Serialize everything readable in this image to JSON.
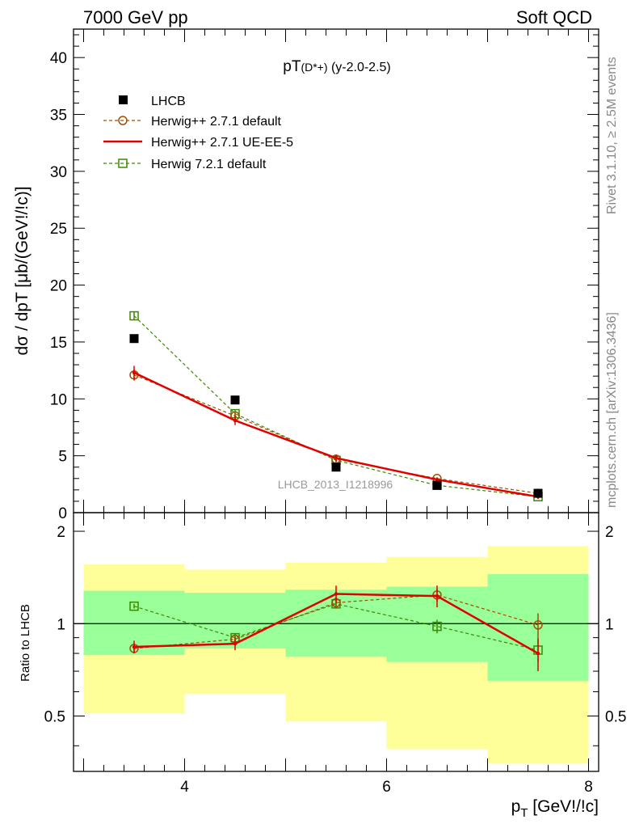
{
  "header": {
    "left_title": "7000 GeV pp",
    "right_title": "Soft QCD"
  },
  "side_labels": {
    "rivet": "Rivet 3.1.10, ≥ 2.5M events",
    "mcplots": "mcplots.cern.ch [arXiv:1306.3436]"
  },
  "colors": {
    "data": "#000000",
    "herwigpp_default": "#a05000",
    "herwigpp_ueee5": "#e00000",
    "herwig7": "#3a8a00",
    "band_inner": "#99ff99",
    "band_outer": "#ffff99"
  },
  "chart_data": [
    {
      "type": "scatter",
      "panel": "main",
      "title": "pT(D*+) (y-2.0-2.5)",
      "title_main": "pT",
      "title_sub": "(D*+)",
      "title_rest": " (y-2.0-2.5)",
      "ylabel": "dσ / dpT [μb/(GeV!/!c)]",
      "xlim": [
        2.9,
        8.1
      ],
      "ylim": [
        0,
        42.5
      ],
      "yticks": [
        0,
        5,
        10,
        15,
        20,
        25,
        30,
        35,
        40
      ],
      "ytick_labels": [
        "0",
        "5",
        "10",
        "15",
        "20",
        "25",
        "30",
        "35",
        "40"
      ],
      "watermark": "LHCB_2013_I1218996",
      "legend_placement": "top-left",
      "x": [
        3.5,
        4.5,
        5.5,
        6.5,
        7.5
      ],
      "series": [
        {
          "name": "LHCB",
          "values": [
            15.3,
            9.9,
            4.0,
            2.4,
            1.7
          ],
          "errors": [
            0.3,
            0.2,
            0.1,
            0.1,
            0.1
          ],
          "marker": "filled-square"
        },
        {
          "name": "Herwig++ 2.7.1 default",
          "values": [
            12.1,
            8.5,
            4.7,
            3.0,
            1.7
          ],
          "errors": [
            0.5,
            0.3,
            0.2,
            0.1,
            0.2
          ],
          "marker": "open-circle",
          "line": "dashed"
        },
        {
          "name": "Herwig++ 2.7.1 UE-EE-5",
          "values": [
            12.3,
            8.1,
            4.8,
            2.9,
            1.4
          ],
          "errors": [
            0.6,
            0.4,
            0.3,
            0.2,
            0.2
          ],
          "marker": "none",
          "line": "solid"
        },
        {
          "name": "Herwig 7.2.1 default",
          "values": [
            17.3,
            8.7,
            4.6,
            2.4,
            1.4
          ],
          "errors": [
            0.4,
            0.3,
            0.2,
            0.1,
            0.1
          ],
          "marker": "open-square",
          "line": "dashed"
        }
      ]
    },
    {
      "type": "scatter",
      "panel": "ratio",
      "ylabel": "Ratio to LHCB",
      "xlabel": "pT [GeV!/!c]",
      "xlabel_main": "p",
      "xlabel_sub": "T",
      "xlabel_rest": " [GeV!/!c]",
      "xlim": [
        2.9,
        8.1
      ],
      "ylim": [
        0.33,
        2.3
      ],
      "log_y": true,
      "xticks": [
        4,
        6,
        8
      ],
      "xtick_labels": [
        "4",
        "6",
        "8"
      ],
      "yticks": [
        0.5,
        1,
        2
      ],
      "ytick_labels": [
        "0.5",
        "1",
        "2"
      ],
      "x": [
        3.5,
        4.5,
        5.5,
        6.5,
        7.5
      ],
      "bins": [
        [
          3,
          4
        ],
        [
          4,
          5
        ],
        [
          5,
          6
        ],
        [
          6,
          7
        ],
        [
          7,
          8
        ]
      ],
      "band_inner": [
        [
          0.79,
          1.28
        ],
        [
          0.83,
          1.26
        ],
        [
          0.78,
          1.29
        ],
        [
          0.75,
          1.32
        ],
        [
          0.65,
          1.45
        ]
      ],
      "band_outer": [
        [
          0.51,
          1.56
        ],
        [
          0.59,
          1.5
        ],
        [
          0.48,
          1.58
        ],
        [
          0.39,
          1.65
        ],
        [
          0.35,
          1.79
        ]
      ],
      "series": [
        {
          "name": "Herwig++ 2.7.1 default",
          "values": [
            0.83,
            0.89,
            1.17,
            1.24,
            0.99
          ],
          "errors": [
            0.03,
            0.03,
            0.05,
            0.06,
            0.09
          ]
        },
        {
          "name": "Herwig++ 2.7.1 UE-EE-5",
          "values": [
            0.84,
            0.86,
            1.25,
            1.23,
            0.8
          ],
          "errors": [
            0.04,
            0.04,
            0.08,
            0.1,
            0.1
          ]
        },
        {
          "name": "Herwig 7.2.1 default",
          "values": [
            1.14,
            0.9,
            1.16,
            0.98,
            0.82
          ],
          "errors": [
            0.02,
            0.03,
            0.04,
            0.05,
            0.07
          ]
        }
      ]
    }
  ]
}
